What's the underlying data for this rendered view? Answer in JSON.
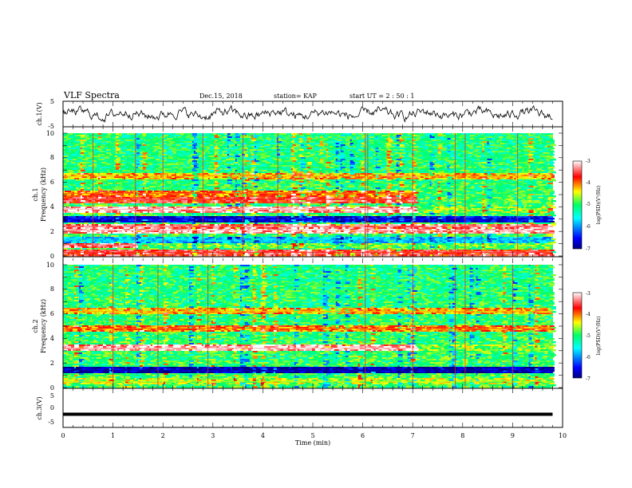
{
  "header": {
    "title": "VLF Spectra",
    "date": "Dec.15, 2018",
    "station": "station= KAP",
    "start": "start  UT  =   2 : 50 : 1"
  },
  "chart_data": [
    {
      "type": "line",
      "id": "ch1-waveform",
      "ylabel": "ch.1(V)",
      "ylim": [
        -5,
        5
      ],
      "yticks": [
        "5",
        "-5"
      ],
      "xlim": [
        0,
        10
      ],
      "data_extent_min": 9.8,
      "color": "#000000"
    },
    {
      "type": "heatmap",
      "id": "ch1-spectrogram",
      "ylabel_line1": "ch.1",
      "ylabel_line2": "Frequency (kHz)",
      "ylim": [
        0,
        10
      ],
      "yticks": [
        "0",
        "2",
        "4",
        "6",
        "8",
        "10"
      ],
      "xlim": [
        0,
        10
      ],
      "data_extent_min": 9.8,
      "colorbar": {
        "label": "log(PSD)(V²/Hz)",
        "range": [
          -7,
          -3
        ],
        "ticks": [
          "-3",
          "-4",
          "-5",
          "-6",
          "-7"
        ]
      },
      "bands": [
        {
          "f": 0.3,
          "level": 0.85,
          "t_end": 9.8
        },
        {
          "f": 0.9,
          "level": 0.9,
          "t_end": 1.5
        },
        {
          "f": 1.3,
          "level": 0.3,
          "t_end": 9.8
        },
        {
          "f": 2.1,
          "level": 0.95,
          "t_end": 9.8
        },
        {
          "f": 2.4,
          "level": 0.9,
          "t_end": 9.8
        },
        {
          "f": 3.0,
          "level": 0.1,
          "t_end": 9.8
        },
        {
          "f": 3.8,
          "level": 0.95,
          "t_end": 7.1
        },
        {
          "f": 4.6,
          "level": 0.85,
          "t_end": 7.1
        },
        {
          "f": 5.1,
          "level": 0.75,
          "t_end": 7.1
        },
        {
          "f": 6.5,
          "level": 0.7,
          "t_end": 9.8
        }
      ],
      "bursts_min": [
        0.6,
        1.45,
        2.0,
        2.8,
        3.6,
        4.3,
        6.05,
        6.1,
        7.0,
        7.85,
        8.05,
        9.1
      ]
    },
    {
      "type": "heatmap",
      "id": "ch2-spectrogram",
      "ylabel_line1": "ch.2",
      "ylabel_line2": "Frequency (kHz)",
      "ylim": [
        0,
        10
      ],
      "yticks": [
        "0",
        "2",
        "4",
        "6",
        "8",
        "10"
      ],
      "xlim": [
        0,
        10
      ],
      "data_extent_min": 9.8,
      "colorbar": {
        "label": "log(PSD)(V²/Hz)",
        "range": [
          -7,
          -3
        ],
        "ticks": [
          "-3",
          "-4",
          "-5",
          "-6",
          "-7"
        ]
      },
      "bands": [
        {
          "f": 0.5,
          "level": 0.6,
          "t_end": 9.8
        },
        {
          "f": 1.4,
          "level": 0.05,
          "t_end": 9.8
        },
        {
          "f": 3.2,
          "level": 0.95,
          "t_end": 7.1
        },
        {
          "f": 4.8,
          "level": 0.75,
          "t_end": 9.8
        },
        {
          "f": 6.2,
          "level": 0.7,
          "t_end": 9.8
        }
      ],
      "bursts_min": [
        1.0,
        1.9,
        2.9,
        6.05,
        7.0,
        7.85,
        8.05,
        9.0
      ]
    },
    {
      "type": "line",
      "id": "ch3-waveform",
      "ylabel": "ch.3(V)",
      "ylim": [
        -5,
        5
      ],
      "yticks": [
        "5",
        "0",
        "-5"
      ],
      "xlim": [
        0,
        10
      ],
      "data_extent_min": 9.8,
      "constant_value": -2,
      "xlabel": "Time  (min)",
      "xticks": [
        "0",
        "1",
        "2",
        "3",
        "4",
        "5",
        "6",
        "7",
        "8",
        "9",
        "10"
      ],
      "color": "#000000"
    }
  ]
}
